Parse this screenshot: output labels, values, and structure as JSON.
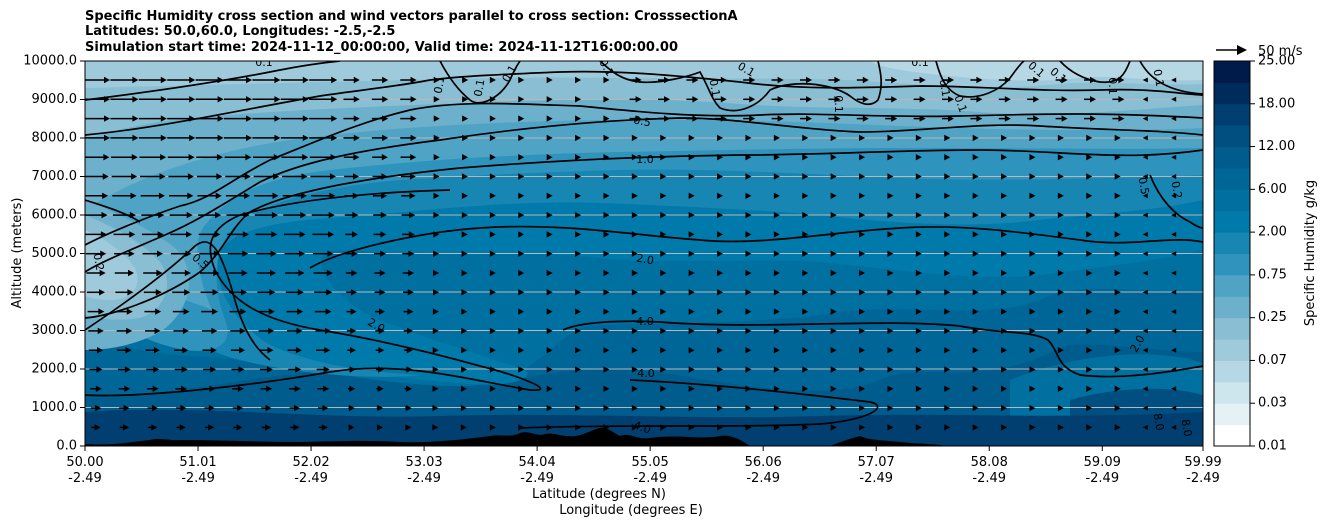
{
  "header": {
    "title_line1": "Specific Humidity cross section and wind vectors parallel to cross section: CrosssectionA",
    "title_line2": "Latitudes: 50.0,60.0, Longitudes: -2.5,-2.5",
    "title_line3": "Simulation start time: 2024-11-12_00:00:00, Valid time: 2024-11-12T16:00:00.00"
  },
  "chart_data": {
    "type": "heatmap",
    "xlabel": "Latitude (degrees N)",
    "xlabel2": "Longitude (degrees E)",
    "ylabel": "Altitude (meters)",
    "ylim": [
      0,
      10000
    ],
    "yticks": [
      0,
      1000,
      2000,
      3000,
      4000,
      5000,
      6000,
      7000,
      8000,
      9000,
      10000
    ],
    "ytick_labels": [
      "0.0",
      "1000.0",
      "2000.0",
      "3000.0",
      "4000.0",
      "5000.0",
      "6000.0",
      "7000.0",
      "8000.0",
      "9000.0",
      "10000.0"
    ],
    "xlim": [
      50.0,
      59.99
    ],
    "xticks": [
      50.0,
      51.01,
      52.02,
      53.03,
      54.04,
      55.05,
      56.06,
      57.07,
      58.08,
      59.09,
      59.99
    ],
    "xtick_lat_labels": [
      "50.00",
      "51.01",
      "52.02",
      "53.03",
      "54.04",
      "55.05",
      "56.06",
      "57.07",
      "58.08",
      "59.09",
      "59.99"
    ],
    "xtick_lon_labels": [
      "-2.49",
      "-2.49",
      "-2.49",
      "-2.49",
      "-2.49",
      "-2.49",
      "-2.49",
      "-2.49",
      "-2.49",
      "-2.49",
      "-2.49"
    ],
    "grid": "horizontal",
    "colorbar": {
      "label": "Specific Humidity g/kg",
      "tick_labels": [
        "0.01",
        "0.03",
        "0.07",
        "0.25",
        "0.75",
        "2.00",
        "6.00",
        "12.00",
        "18.00",
        "25.00"
      ]
    },
    "contour_labels": [
      "0.1",
      "0.2",
      "0.5",
      "1.0",
      "2.0",
      "4.0",
      "8.0"
    ],
    "wind_reference": "50 m/s"
  },
  "colors": {
    "levels": [
      "#ffffff",
      "#e4f1f5",
      "#cde5ed",
      "#b6d8e5",
      "#9fcadb",
      "#89bed3",
      "#6cb0cb",
      "#4fa3c5",
      "#2f94bd",
      "#1786b3",
      "#007aaa",
      "#0070a0",
      "#006697",
      "#005c8c",
      "#004f80",
      "#003f6f",
      "#002c5c",
      "#001a4a"
    ]
  }
}
